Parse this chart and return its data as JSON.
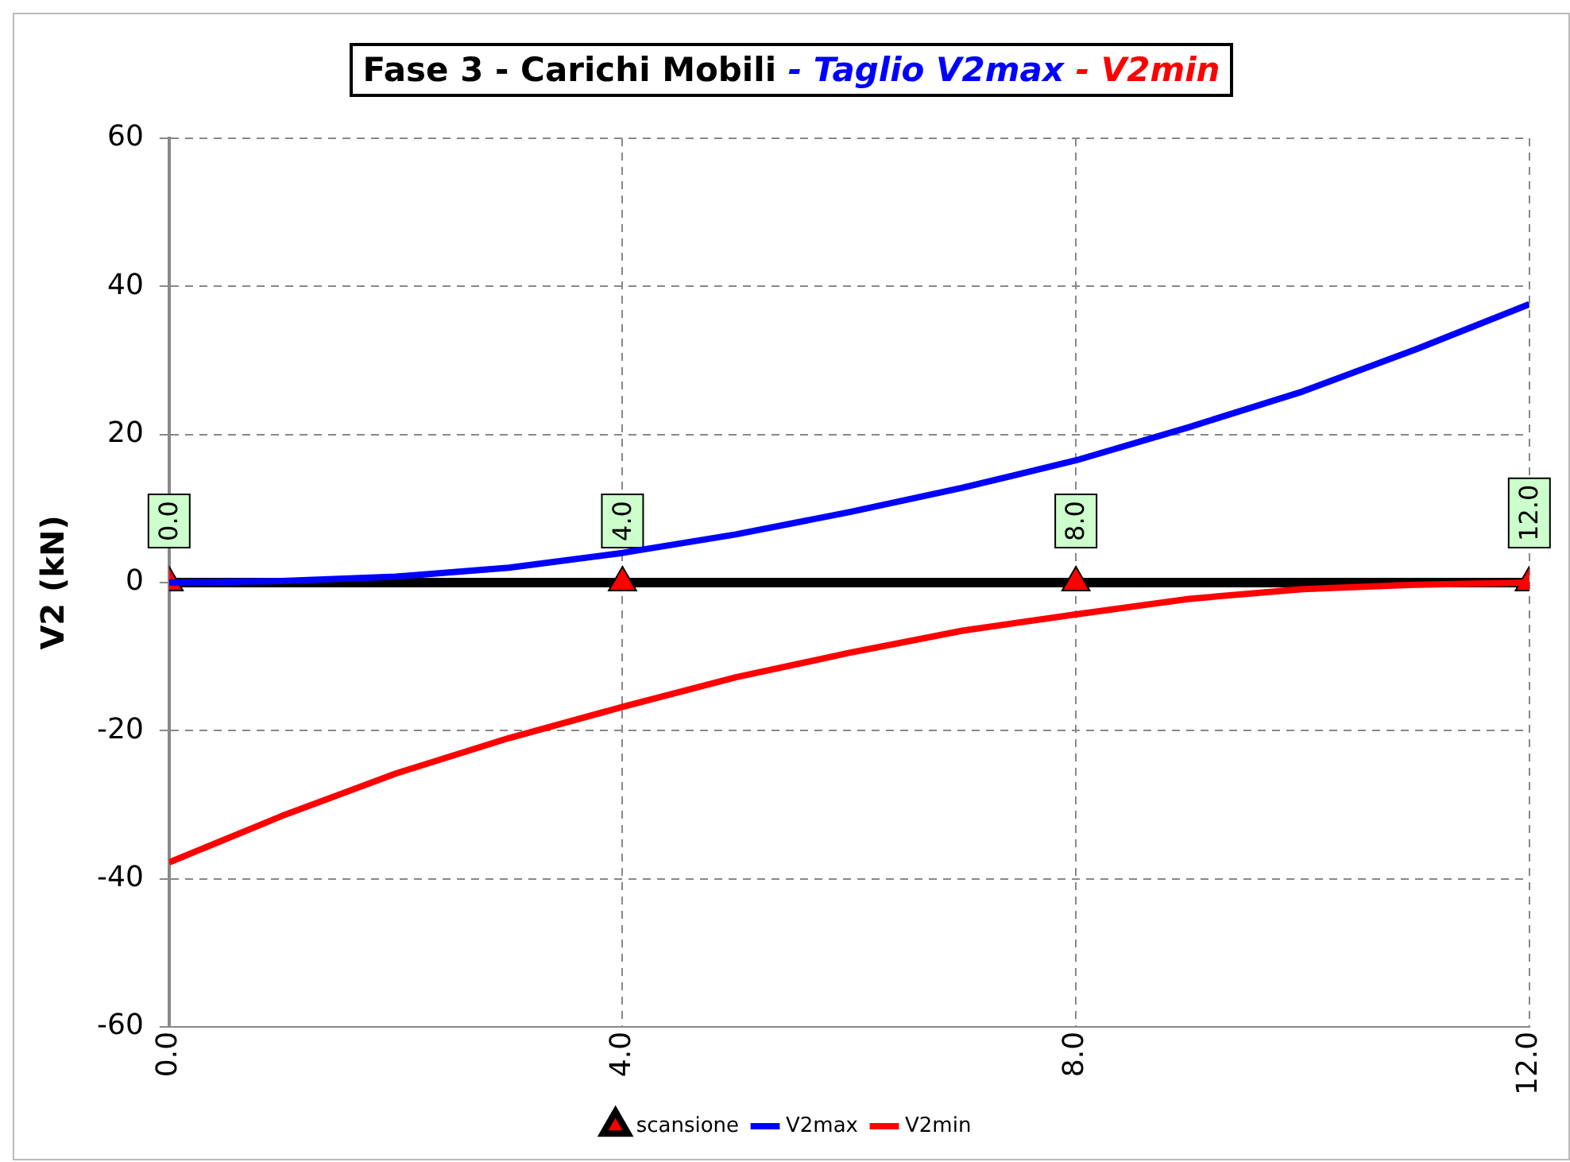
{
  "chart_data": {
    "type": "line",
    "title": "Fase 3 - Carichi Mobili - Taglio V2max - V2min",
    "ylabel": "V2 (kN)",
    "xlim": [
      0,
      12
    ],
    "xticks": [
      {
        "value": 0,
        "label": "0.0"
      },
      {
        "value": 4,
        "label": "4.0"
      },
      {
        "value": 8,
        "label": "8.0"
      },
      {
        "value": 12,
        "label": "12.0"
      }
    ],
    "annotations": [
      {
        "text": "0.0",
        "x": 0,
        "y": 0
      },
      {
        "text": "4.0",
        "x": 4,
        "y": 0
      },
      {
        "text": "8.0",
        "x": 8,
        "y": 0
      },
      {
        "text": "12.0",
        "x": 12,
        "y": 0
      }
    ],
    "ylim": [
      -60,
      60
    ],
    "yticks": [
      -60,
      -40,
      -20,
      0,
      20,
      40,
      60
    ],
    "grid": true,
    "legend": "bottom",
    "series": [
      {
        "name": "scansione",
        "color": "#000000",
        "marker": "triangle",
        "x": [
          0,
          4,
          8,
          12
        ],
        "values": [
          0,
          0,
          0,
          0
        ]
      },
      {
        "name": "V2max",
        "color": "#0000ff",
        "marker": "none",
        "x": [
          0,
          1,
          2,
          3,
          4,
          5,
          6,
          7,
          8,
          9,
          10,
          11,
          12
        ],
        "values": [
          0,
          0.2,
          0.8,
          2,
          4,
          6.5,
          9.5,
          12.8,
          16.5,
          21,
          25.8,
          31.5,
          37.6
        ]
      },
      {
        "name": "V2min",
        "color": "#ff0000",
        "marker": "none",
        "x": [
          0,
          1,
          2,
          3,
          4,
          5,
          6,
          7,
          8,
          9,
          10,
          11,
          12
        ],
        "values": [
          -37.8,
          -31.5,
          -25.8,
          -21,
          -16.8,
          -12.8,
          -9.5,
          -6.5,
          -4.3,
          -2.2,
          -0.9,
          -0.3,
          0
        ]
      }
    ]
  }
}
